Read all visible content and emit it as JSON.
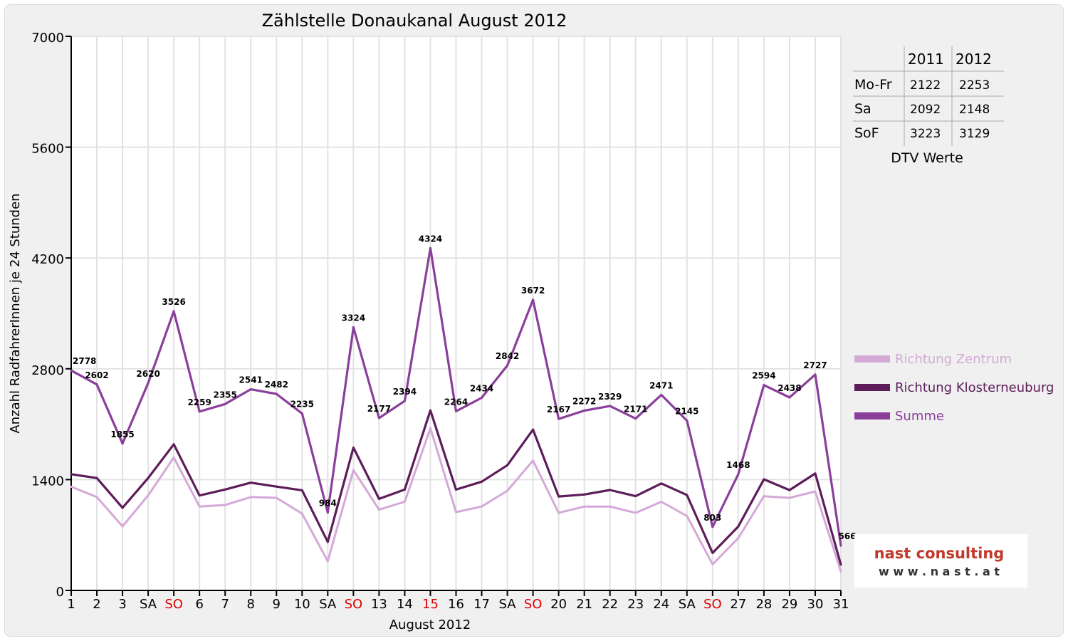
{
  "chart_data": {
    "type": "line",
    "title": "Zählstelle Donaukanal August 2012",
    "xlabel": "August 2012",
    "ylabel": "Anzahl RadfahrerInnen je 24 Stunden",
    "ylim": [
      0,
      7000
    ],
    "yticks": [
      0,
      1400,
      2800,
      4200,
      5600,
      7000
    ],
    "grid": true,
    "legend_position": "right",
    "categories": [
      "1",
      "2",
      "3",
      "SA",
      "SO",
      "6",
      "7",
      "8",
      "9",
      "10",
      "SA",
      "SO",
      "13",
      "14",
      "15",
      "16",
      "17",
      "SA",
      "SO",
      "20",
      "21",
      "22",
      "23",
      "24",
      "SA",
      "SO",
      "27",
      "28",
      "29",
      "30",
      "31"
    ],
    "red_categories": [
      4,
      11,
      14,
      18,
      25
    ],
    "series": [
      {
        "name": "Richtung Zentrum",
        "color": "#d4a9d8",
        "values": [
          1310,
          1180,
          810,
          1200,
          1680,
          1060,
          1080,
          1180,
          1170,
          970,
          370,
          1520,
          1020,
          1120,
          2050,
          990,
          1060,
          1260,
          1640,
          980,
          1060,
          1060,
          980,
          1120,
          940,
          330,
          660,
          1190,
          1170,
          1250,
          240
        ]
      },
      {
        "name": "Richtung Klosterneuburg",
        "color": "#5c1d5a",
        "values": [
          1468,
          1420,
          1045,
          1420,
          1846,
          1199,
          1275,
          1361,
          1312,
          1265,
          614,
          1804,
          1157,
          1274,
          2274,
          1274,
          1374,
          1582,
          2032,
          1187,
          1212,
          1269,
          1191,
          1351,
          1205,
          473,
          808,
          1404,
          1268,
          1477,
          326
        ]
      },
      {
        "name": "Summe",
        "color": "#8a3f9a",
        "values": [
          2778,
          2602,
          1855,
          2620,
          3526,
          2259,
          2355,
          2541,
          2482,
          2235,
          984,
          3324,
          2177,
          2394,
          4324,
          2264,
          2434,
          2842,
          3672,
          2167,
          2272,
          2329,
          2171,
          2471,
          2145,
          803,
          1468,
          2594,
          2438,
          2727,
          566
        ]
      }
    ],
    "data_labels": [
      "2778",
      "2602",
      "1855",
      "2620",
      "3526",
      "2259",
      "2355",
      "2541",
      "2482",
      "2235",
      "984",
      "3324",
      "2177",
      "2394",
      "4324",
      "2264",
      "2434",
      "2842",
      "3672",
      "2167",
      "2272",
      "2329",
      "2171",
      "2471",
      "2145",
      "803",
      "1468",
      "2594",
      "2438",
      "2727",
      "566"
    ]
  },
  "dtv_table": {
    "headers": [
      "",
      "2011",
      "2012"
    ],
    "rows": [
      {
        "label": "Mo-Fr",
        "v2011": "2122",
        "v2012": "2253"
      },
      {
        "label": "Sa",
        "v2011": "2092",
        "v2012": "2148"
      },
      {
        "label": "SoF",
        "v2011": "3223",
        "v2012": "3129"
      }
    ],
    "caption": "DTV Werte"
  },
  "logo": {
    "brand": "nast consulting",
    "url": "w w w . n a s t . a t"
  }
}
